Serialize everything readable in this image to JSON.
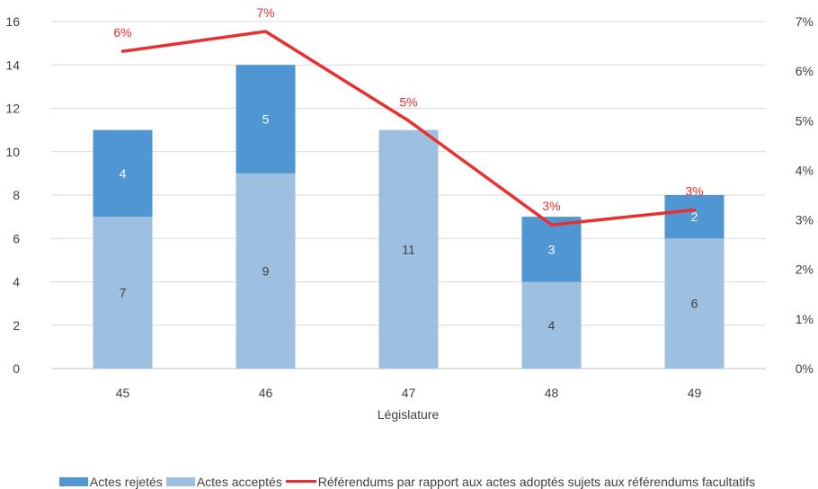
{
  "chart_data": {
    "type": "bar",
    "stacked": true,
    "categories": [
      "45",
      "46",
      "47",
      "48",
      "49"
    ],
    "xlabel": "Législature",
    "ylim": [
      0,
      16
    ],
    "yticks": [
      0,
      2,
      4,
      6,
      8,
      10,
      12,
      14,
      16
    ],
    "y2lim": [
      0,
      7
    ],
    "y2ticks": [
      0,
      1,
      2,
      3,
      4,
      5,
      6,
      7
    ],
    "y2_tick_suffix": "%",
    "grid": true,
    "legend_position": "bottom",
    "series": [
      {
        "name": "Actes acceptés",
        "kind": "bar",
        "color": "#9dbfe0",
        "label_color": "#404040",
        "values": [
          7,
          9,
          11,
          4,
          6
        ]
      },
      {
        "name": "Actes rejetés",
        "kind": "bar",
        "color": "#5096d2",
        "label_color": "#ffffff",
        "values": [
          4,
          5,
          0,
          3,
          2
        ]
      },
      {
        "name": "Référendums par rapport aux actes adoptés sujets aux référendums facultatifs",
        "kind": "line",
        "axis": "secondary",
        "color": "#e8302e",
        "values": [
          6.4,
          6.8,
          5.0,
          2.9,
          3.2
        ],
        "labels": [
          "6%",
          "7%",
          "5%",
          "3%",
          "3%"
        ]
      }
    ]
  },
  "legend": {
    "rejected": "Actes rejetés",
    "accepted": "Actes acceptés",
    "line": "Référendums par rapport aux actes adoptés sujets aux référendums facultatifs"
  }
}
